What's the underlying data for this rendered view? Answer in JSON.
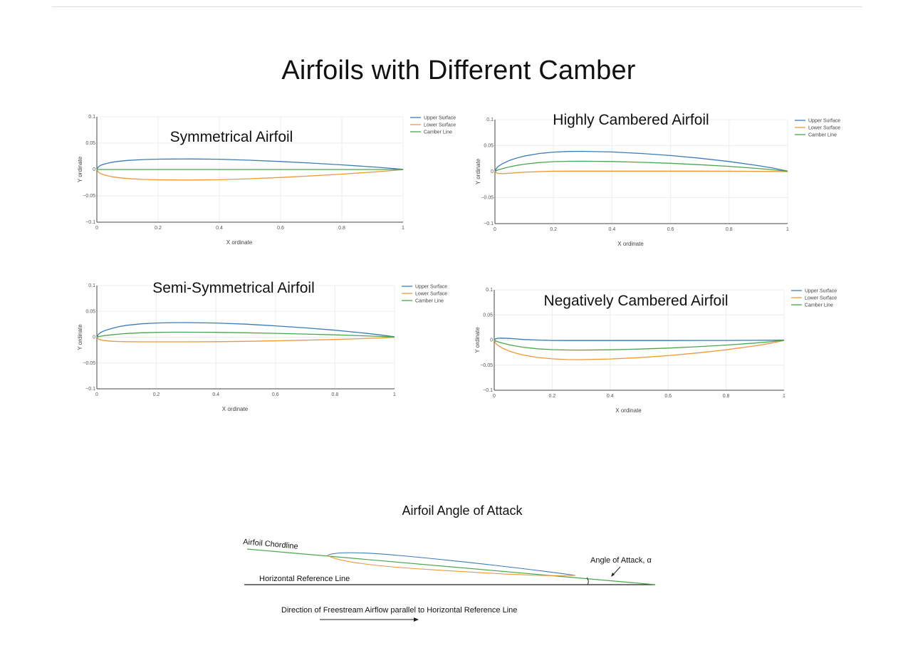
{
  "page_title": "Airfoils with Different Camber",
  "colors": {
    "upper": "#3a7cb8",
    "lower": "#f0973a",
    "camber": "#4aa84a",
    "axis": "#444444",
    "grid": "#ececec"
  },
  "chart_data": [
    {
      "type": "line",
      "title": "Symmetrical Airfoil",
      "xlabel": "X ordinate",
      "ylabel": "Y ordinate",
      "xlim": [
        0,
        1
      ],
      "ylim": [
        -0.1,
        0.1
      ],
      "xticks": [
        "0",
        "0.2",
        "0.4",
        "0.6",
        "0.8",
        "1"
      ],
      "yticks": [
        "0.1",
        "0.05",
        "0",
        "−0.05",
        "−0.1"
      ],
      "legend": [
        "Upper Surface",
        "Lower Surface",
        "Camber Line"
      ],
      "x": [
        0,
        0.005,
        0.0125,
        0.025,
        0.05,
        0.075,
        0.1,
        0.15,
        0.2,
        0.25,
        0.3,
        0.4,
        0.5,
        0.6,
        0.7,
        0.8,
        0.9,
        0.95,
        1
      ],
      "series": [
        {
          "name": "Upper Surface",
          "values": [
            0,
            0.005,
            0.008,
            0.0105,
            0.0138,
            0.0158,
            0.0172,
            0.0188,
            0.0196,
            0.0199,
            0.02,
            0.0194,
            0.0176,
            0.0152,
            0.0122,
            0.0088,
            0.0048,
            0.0027,
            0.0003
          ]
        },
        {
          "name": "Lower Surface",
          "values": [
            0,
            -0.005,
            -0.008,
            -0.0105,
            -0.0138,
            -0.0158,
            -0.0172,
            -0.0188,
            -0.0196,
            -0.0199,
            -0.02,
            -0.0194,
            -0.0176,
            -0.0152,
            -0.0122,
            -0.0088,
            -0.0048,
            -0.0027,
            -0.0003
          ]
        },
        {
          "name": "Camber Line",
          "values": [
            0,
            0,
            0,
            0,
            0,
            0,
            0,
            0,
            0,
            0,
            0,
            0,
            0,
            0,
            0,
            0,
            0,
            0,
            0
          ]
        }
      ]
    },
    {
      "type": "line",
      "title": "Highly Cambered Airfoil",
      "xlabel": "X ordinate",
      "ylabel": "Y ordinate",
      "xlim": [
        0,
        1
      ],
      "ylim": [
        -0.1,
        0.1
      ],
      "xticks": [
        "0",
        "0.2",
        "0.4",
        "0.6",
        "0.8",
        "1"
      ],
      "yticks": [
        "0.1",
        "0.05",
        "0",
        "−0.05",
        "−0.1"
      ],
      "legend": [
        "Upper Surface",
        "Lower Surface",
        "Camber Line"
      ],
      "x": [
        0,
        0.005,
        0.0125,
        0.025,
        0.05,
        0.075,
        0.1,
        0.15,
        0.2,
        0.25,
        0.3,
        0.4,
        0.5,
        0.6,
        0.7,
        0.8,
        0.9,
        0.95,
        1
      ],
      "series": [
        {
          "name": "Upper Surface",
          "values": [
            0,
            0.0065,
            0.0105,
            0.015,
            0.0215,
            0.0262,
            0.0298,
            0.0348,
            0.0375,
            0.0388,
            0.039,
            0.0378,
            0.035,
            0.031,
            0.0258,
            0.0195,
            0.0115,
            0.0068,
            0.001
          ]
        },
        {
          "name": "Lower Surface",
          "values": [
            0,
            -0.0025,
            -0.0035,
            -0.0038,
            -0.0032,
            -0.0022,
            -0.0012,
            0,
            0.0008,
            0.001,
            0.001,
            0.001,
            0.001,
            0.001,
            0.0009,
            0.0008,
            0.0006,
            0.0004,
            0
          ]
        },
        {
          "name": "Camber Line",
          "values": [
            0,
            0.002,
            0.0035,
            0.0056,
            0.0092,
            0.012,
            0.0143,
            0.0174,
            0.0192,
            0.0199,
            0.02,
            0.0194,
            0.018,
            0.016,
            0.0133,
            0.0101,
            0.006,
            0.0036,
            0.0005
          ]
        }
      ]
    },
    {
      "type": "line",
      "title": "Semi-Symmetrical Airfoil",
      "xlabel": "X ordinate",
      "ylabel": "Y ordinate",
      "xlim": [
        0,
        1
      ],
      "ylim": [
        -0.1,
        0.1
      ],
      "xticks": [
        "0",
        "0.2",
        "0.4",
        "0.6",
        "0.8",
        "1"
      ],
      "yticks": [
        "0.1",
        "0.05",
        "0",
        "−0.05",
        "−0.1"
      ],
      "legend": [
        "Upper Surface",
        "Lower Surface",
        "Camber Line"
      ],
      "x": [
        0,
        0.005,
        0.0125,
        0.025,
        0.05,
        0.075,
        0.1,
        0.15,
        0.2,
        0.25,
        0.3,
        0.4,
        0.5,
        0.6,
        0.7,
        0.8,
        0.9,
        0.95,
        1
      ],
      "series": [
        {
          "name": "Upper Surface",
          "values": [
            0,
            0.0055,
            0.009,
            0.0125,
            0.017,
            0.0205,
            0.023,
            0.026,
            0.0275,
            0.0282,
            0.0283,
            0.0275,
            0.0252,
            0.022,
            0.018,
            0.0135,
            0.0078,
            0.0045,
            0.0008
          ]
        },
        {
          "name": "Lower Surface",
          "values": [
            0,
            -0.0035,
            -0.0052,
            -0.0065,
            -0.0078,
            -0.0084,
            -0.0087,
            -0.009,
            -0.009,
            -0.009,
            -0.009,
            -0.0087,
            -0.008,
            -0.007,
            -0.0058,
            -0.0044,
            -0.0026,
            -0.0015,
            -0.0002
          ]
        },
        {
          "name": "Camber Line",
          "values": [
            0,
            0.001,
            0.0019,
            0.003,
            0.0046,
            0.006,
            0.0072,
            0.0085,
            0.0093,
            0.0096,
            0.0097,
            0.0094,
            0.0086,
            0.0075,
            0.0061,
            0.0046,
            0.0026,
            0.0015,
            0.0003
          ]
        }
      ]
    },
    {
      "type": "line",
      "title": "Negatively Cambered Airfoil",
      "xlabel": "X ordinate",
      "ylabel": "Y ordinate",
      "xlim": [
        0,
        1
      ],
      "ylim": [
        -0.1,
        0.1
      ],
      "xticks": [
        "0",
        "0.2",
        "0.4",
        "0.6",
        "0.8",
        "1"
      ],
      "yticks": [
        "0.1",
        "0.05",
        "0",
        "−0.05",
        "−0.1"
      ],
      "legend": [
        "Upper Surface",
        "Lower Surface",
        "Camber Line"
      ],
      "x": [
        0,
        0.005,
        0.0125,
        0.025,
        0.05,
        0.075,
        0.1,
        0.15,
        0.2,
        0.25,
        0.3,
        0.4,
        0.5,
        0.6,
        0.7,
        0.8,
        0.9,
        0.95,
        1
      ],
      "series": [
        {
          "name": "Upper Surface",
          "values": [
            0,
            0.0025,
            0.0035,
            0.0038,
            0.0032,
            0.0022,
            0.0012,
            0,
            -0.0008,
            -0.001,
            -0.001,
            -0.001,
            -0.001,
            -0.001,
            -0.0009,
            -0.0008,
            -0.0006,
            -0.0004,
            0
          ]
        },
        {
          "name": "Lower Surface",
          "values": [
            0,
            -0.0065,
            -0.0105,
            -0.015,
            -0.0215,
            -0.0262,
            -0.0298,
            -0.0348,
            -0.0375,
            -0.0388,
            -0.039,
            -0.0378,
            -0.035,
            -0.031,
            -0.0258,
            -0.0195,
            -0.0115,
            -0.0068,
            -0.001
          ]
        },
        {
          "name": "Camber Line",
          "values": [
            0,
            -0.002,
            -0.0035,
            -0.0056,
            -0.0092,
            -0.012,
            -0.0143,
            -0.0174,
            -0.0192,
            -0.0199,
            -0.02,
            -0.0194,
            -0.018,
            -0.016,
            -0.0133,
            -0.0101,
            -0.006,
            -0.0036,
            -0.0005
          ]
        }
      ]
    }
  ],
  "aoa_diagram": {
    "title": "Airfoil Angle of Attack",
    "chordline_label": "Airfoil Chordline",
    "reference_label": "Horizontal Reference Line",
    "angle_label": "Angle of Attack, α",
    "flow_label": "Direction of Freestream Airflow parallel to Horizontal Reference Line"
  }
}
